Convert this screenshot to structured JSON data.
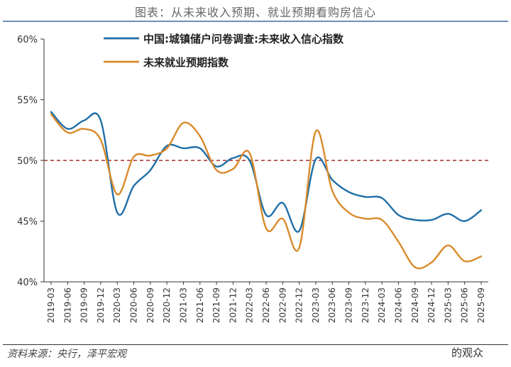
{
  "header": {
    "title": "图表：从未来收入预期、就业预期看购房信心"
  },
  "footer": {
    "source": "资料来源：央行，泽平宏观",
    "watermark": "的观众"
  },
  "colors": {
    "income": "#1f6fa8",
    "employment": "#d98a2b",
    "reference": "#a0302f",
    "axis": "#333333"
  },
  "chart_data": {
    "type": "line",
    "title": "",
    "xlabel": "",
    "ylabel": "",
    "categories": [
      "2019-03",
      "2019-06",
      "2019-09",
      "2019-12",
      "2020-03",
      "2020-06",
      "2020-09",
      "2020-12",
      "2021-03",
      "2021-06",
      "2021-09",
      "2021-12",
      "2022-03",
      "2022-06",
      "2022-09",
      "2022-12",
      "2023-03",
      "2023-06",
      "2023-09",
      "2023-12",
      "2024-03",
      "2024-06",
      "2024-09",
      "2024-12",
      "2025-03",
      "2025-06",
      "2025-09"
    ],
    "ylim": [
      40,
      60
    ],
    "yticks": [
      40,
      45,
      50,
      55,
      60
    ],
    "ytick_labels": [
      "40%",
      "45%",
      "50%",
      "55%",
      "60%"
    ],
    "reference_line": 50,
    "legend_position": "top",
    "series": [
      {
        "name": "中国:城镇储户问卷调查:未来收入信心指数",
        "color": "#1f6fa8",
        "values": [
          54.0,
          52.6,
          53.3,
          53.3,
          45.7,
          47.9,
          49.2,
          51.2,
          51.0,
          51.0,
          49.5,
          50.2,
          50.0,
          45.5,
          46.5,
          44.2,
          50.1,
          48.4,
          47.4,
          47.0,
          46.9,
          45.5,
          45.1,
          45.1,
          45.6,
          45.0,
          45.9
        ]
      },
      {
        "name": "未来就业预期指数",
        "color": "#d98a2b",
        "values": [
          53.8,
          52.3,
          52.6,
          51.7,
          47.2,
          50.3,
          50.4,
          51.0,
          53.1,
          52.0,
          49.2,
          49.3,
          50.6,
          44.4,
          45.2,
          42.8,
          52.4,
          47.5,
          45.7,
          45.2,
          45.1,
          43.3,
          41.2,
          41.6,
          43.0,
          41.7,
          42.1
        ]
      }
    ]
  }
}
